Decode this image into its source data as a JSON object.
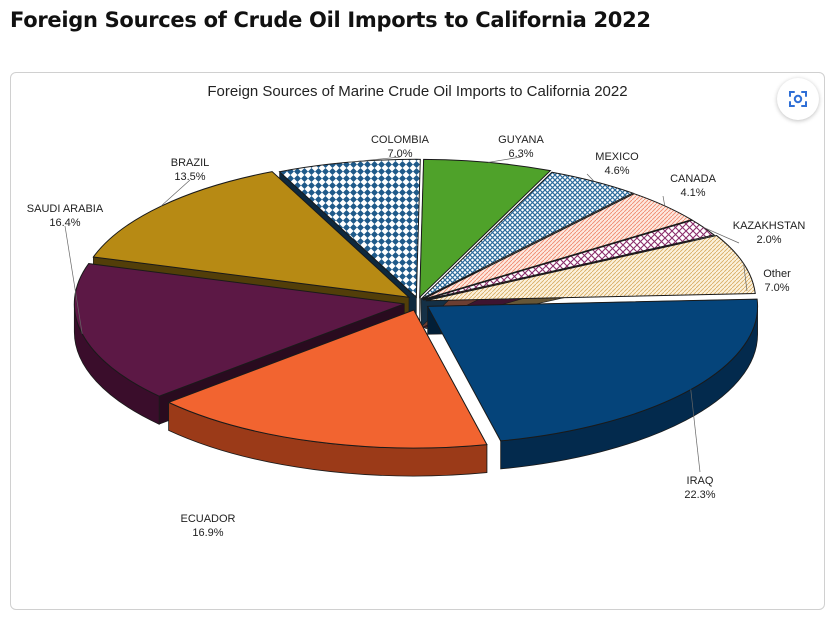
{
  "page": {
    "heading": "Foreign Sources of Crude Oil Imports to California 2022"
  },
  "toolbar": {
    "lens_icon": "lens-scan-icon"
  },
  "chart_data": {
    "type": "pie",
    "title": "Foreign Sources of Marine Crude Oil Imports to California 2022",
    "legend": "none",
    "slices": [
      {
        "label": "IRAQ",
        "value": 22.3,
        "value_label": "22.3%",
        "color": "#05447a",
        "side": "#032a4d"
      },
      {
        "label": "ECUADOR",
        "value": 16.9,
        "value_label": "16.9%",
        "color": "#f26430",
        "side": "#9b3a18"
      },
      {
        "label": "SAUDI ARABIA",
        "value": 16.4,
        "value_label": "16.4%",
        "color": "#5c1845",
        "side": "#3a0d2b"
      },
      {
        "label": "BRAZIL",
        "value": 13.5,
        "value_label": "13.5%",
        "color": "#b78a14",
        "side": "#6f530a"
      },
      {
        "label": "COLOMBIA",
        "value": 7.0,
        "value_label": "7.0%",
        "color": "#1f5a8a",
        "pattern": "diamond"
      },
      {
        "label": "GUYANA",
        "value": 6.3,
        "value_label": "6.3%",
        "color": "#4fa22a",
        "side": "#2f6a17"
      },
      {
        "label": "MEXICO",
        "value": 4.6,
        "value_label": "4.6%",
        "color": "#2c6b9c",
        "pattern": "diag"
      },
      {
        "label": "CANADA",
        "value": 4.1,
        "value_label": "4.1%",
        "color": "#f08a6e",
        "pattern": "dots"
      },
      {
        "label": "KAZAKHSTAN",
        "value": 2.0,
        "value_label": "2.0%",
        "color": "#8a2d6b",
        "pattern": "grid"
      },
      {
        "label": "Other",
        "value": 7.0,
        "value_label": "7.0%",
        "color": "#e3be7a",
        "pattern": "dots"
      }
    ]
  }
}
